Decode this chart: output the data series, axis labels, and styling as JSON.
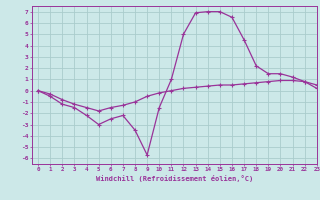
{
  "xlabel": "Windchill (Refroidissement éolien,°C)",
  "bg_color": "#cce8e8",
  "grid_color": "#aacccc",
  "line_color": "#993399",
  "xlim": [
    -0.5,
    23
  ],
  "ylim": [
    -6.5,
    7.5
  ],
  "xticks": [
    0,
    1,
    2,
    3,
    4,
    5,
    6,
    7,
    8,
    9,
    10,
    11,
    12,
    13,
    14,
    15,
    16,
    17,
    18,
    19,
    20,
    21,
    22,
    23
  ],
  "yticks": [
    -6,
    -5,
    -4,
    -3,
    -2,
    -1,
    0,
    1,
    2,
    3,
    4,
    5,
    6,
    7
  ],
  "curve1_x": [
    0,
    1,
    2,
    3,
    4,
    5,
    6,
    7,
    8,
    9,
    10,
    11,
    12,
    13,
    14,
    15,
    16,
    17,
    18,
    19,
    20,
    21,
    22,
    23
  ],
  "curve1_y": [
    0.0,
    -0.5,
    -1.2,
    -1.5,
    -2.2,
    -3.0,
    -2.5,
    -2.2,
    -3.5,
    -5.7,
    -1.5,
    1.0,
    5.0,
    6.9,
    7.0,
    7.0,
    6.5,
    4.5,
    2.2,
    1.5,
    1.5,
    1.2,
    0.8,
    0.2
  ],
  "curve2_x": [
    0,
    1,
    2,
    3,
    4,
    5,
    6,
    7,
    8,
    9,
    10,
    11,
    12,
    13,
    14,
    15,
    16,
    17,
    18,
    19,
    20,
    21,
    22,
    23
  ],
  "curve2_y": [
    0.0,
    -0.3,
    -0.8,
    -1.2,
    -1.5,
    -1.8,
    -1.5,
    -1.3,
    -1.0,
    -0.5,
    -0.2,
    0.0,
    0.2,
    0.3,
    0.4,
    0.5,
    0.5,
    0.6,
    0.7,
    0.8,
    0.9,
    0.9,
    0.8,
    0.5
  ]
}
